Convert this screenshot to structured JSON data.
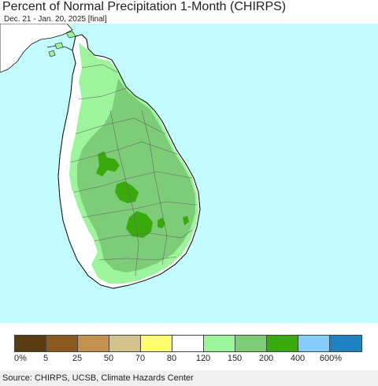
{
  "header": {
    "title": "Percent of Normal Precipitation 1-Month (CHIRPS)",
    "subtitle": "Dec. 21 - Jan. 20, 2025 [final]"
  },
  "legend": {
    "colors": [
      "#5a3c12",
      "#8b5a20",
      "#c29150",
      "#d3c28c",
      "#fefe6e",
      "#ffffff",
      "#9cf59a",
      "#7dcc78",
      "#38aa0c",
      "#84ccfa",
      "#1f82c0"
    ],
    "ticks": [
      "0%",
      "5",
      "25",
      "50",
      "70",
      "80",
      "120",
      "150",
      "200",
      "400",
      "600%"
    ]
  },
  "map": {
    "sea_color": "#c3fcff"
  },
  "footer": {
    "source": "Source: CHIRPS, UCSB, Climate Hazards Center"
  }
}
